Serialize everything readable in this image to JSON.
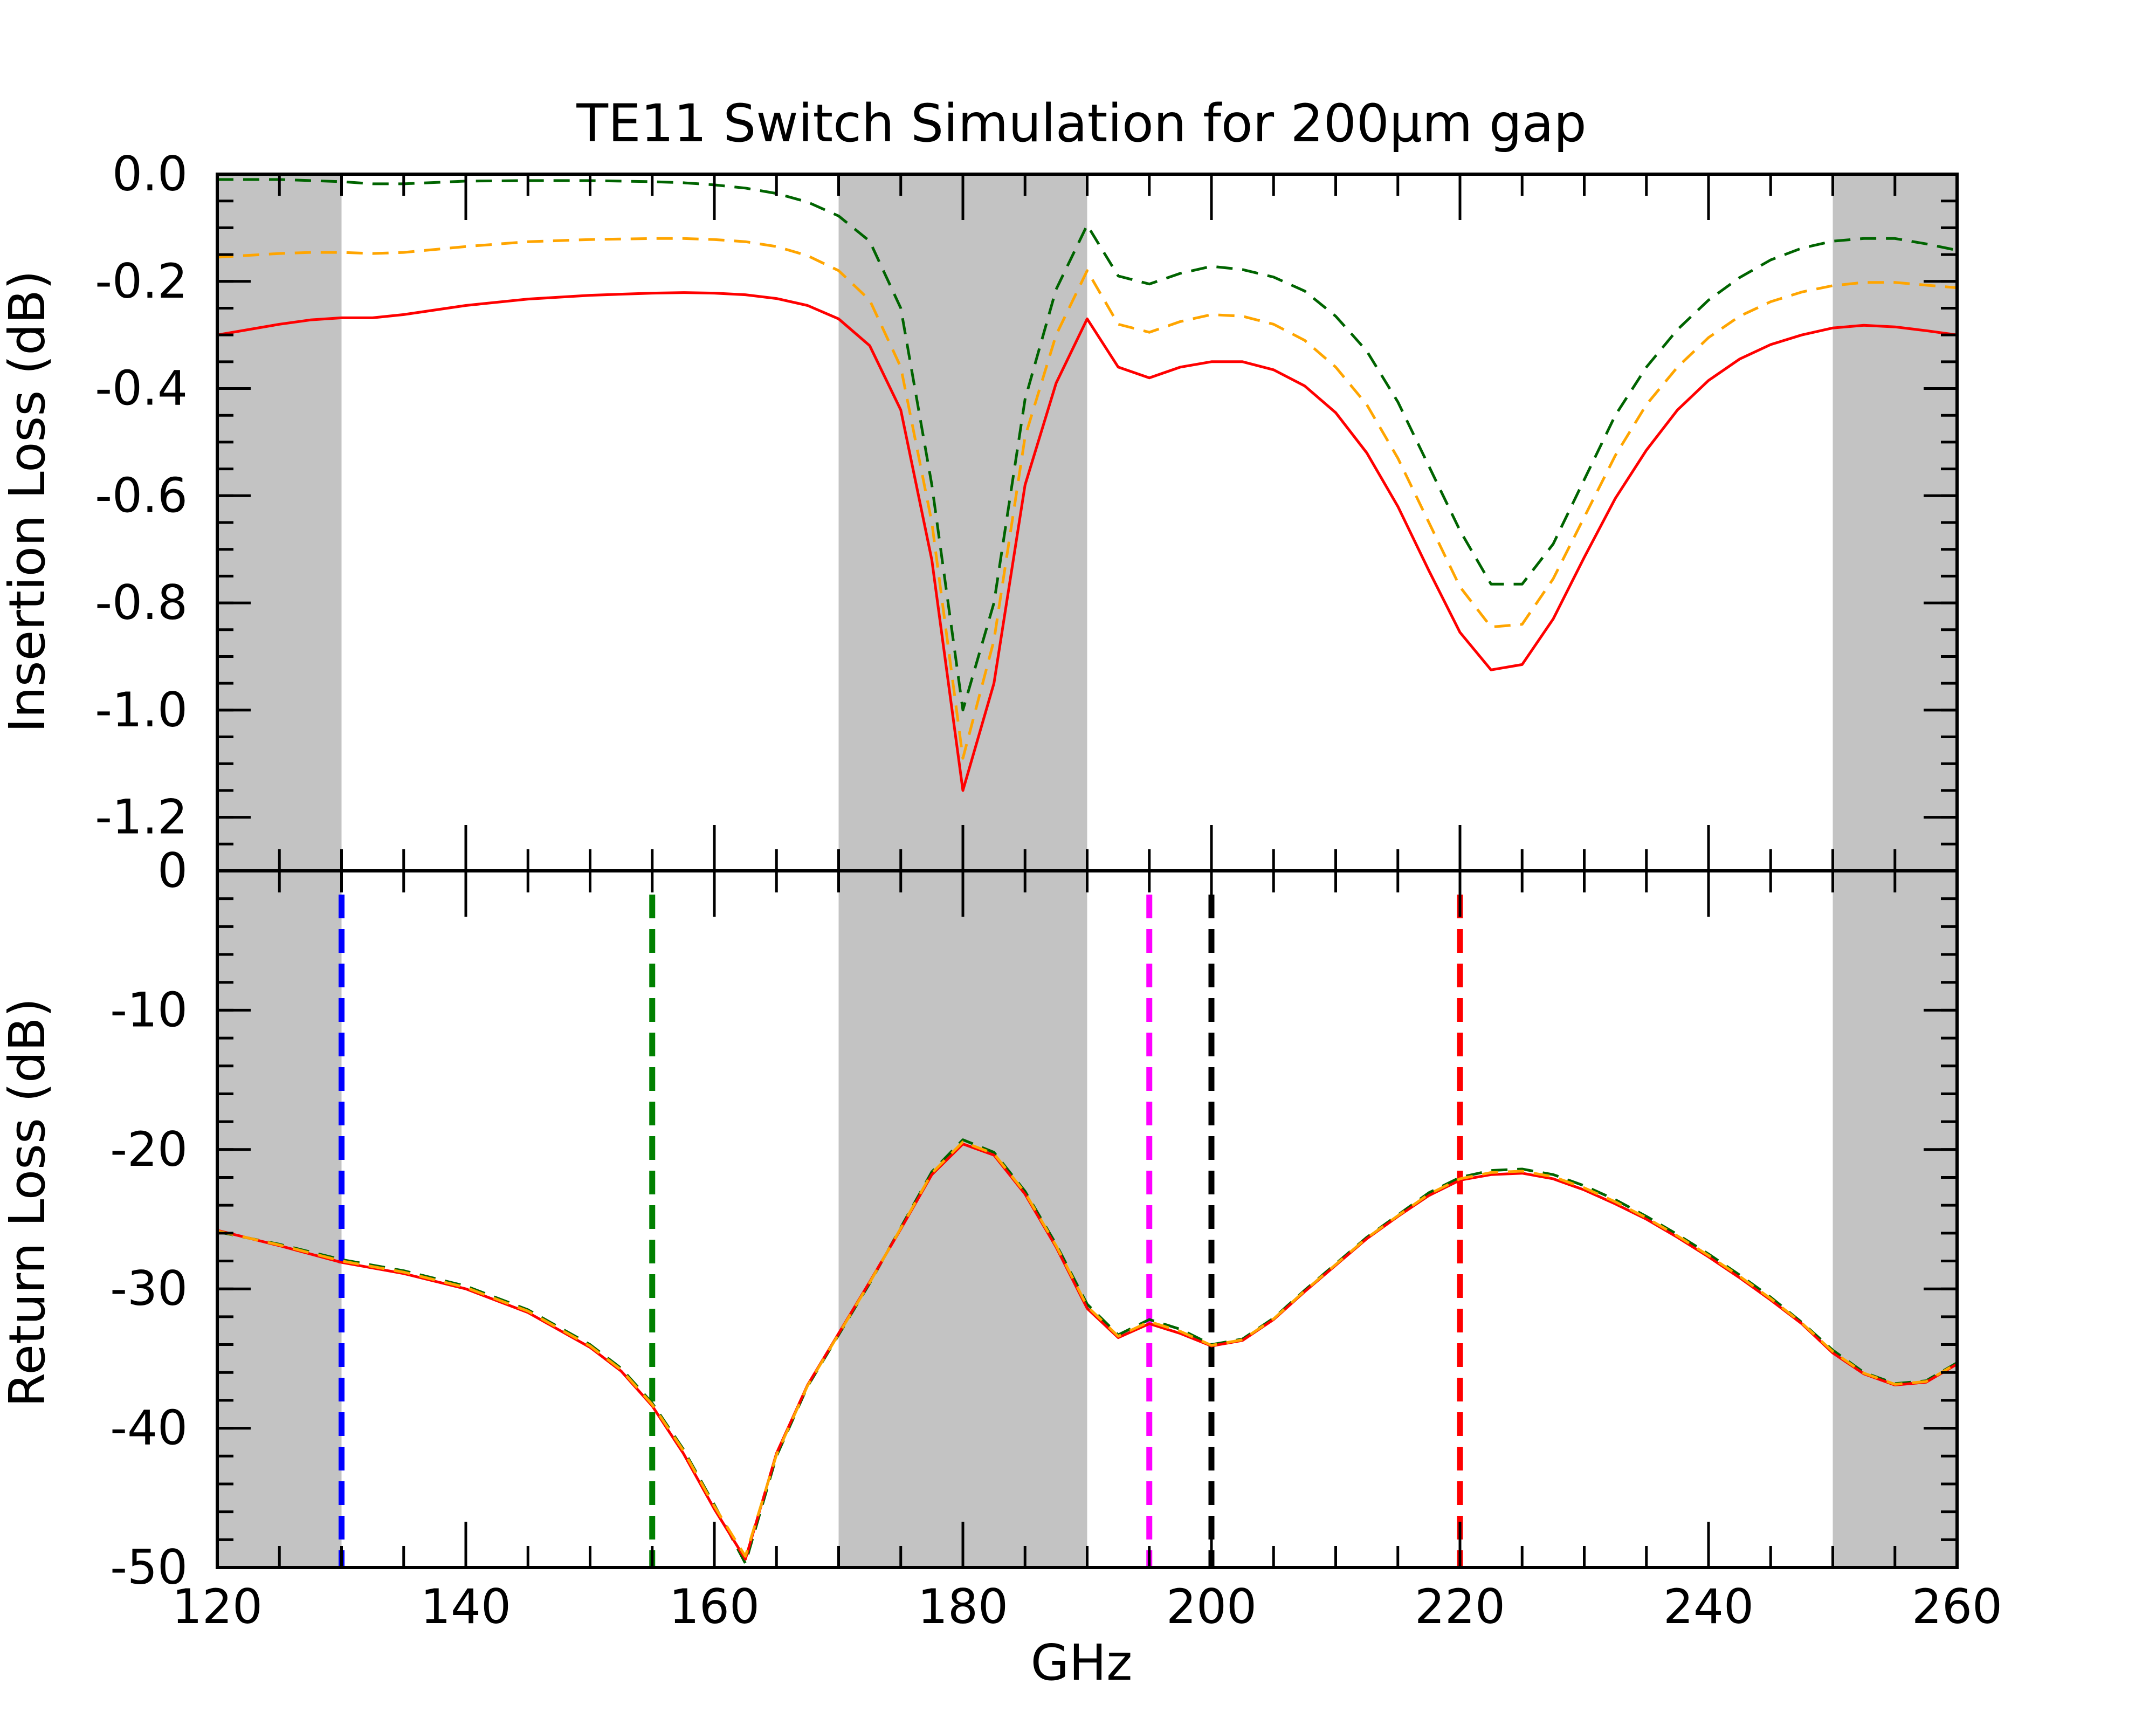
{
  "chart_data": {
    "type": "line",
    "title": "TE11 Switch Simulation for 200μm gap",
    "xlabel": "GHz",
    "xlim": [
      120,
      260
    ],
    "xticks": [
      120,
      140,
      160,
      180,
      200,
      220,
      240,
      260
    ],
    "xtick_labels": [
      "120",
      "140",
      "160",
      "180",
      "200",
      "220",
      "240",
      "260"
    ],
    "shaded_bands_ghz": [
      [
        120,
        130
      ],
      [
        170,
        190
      ],
      [
        250,
        260
      ]
    ],
    "shade_color": "#c0c0c0",
    "panels": [
      {
        "id": "insertion",
        "ylabel": "Insertion Loss (dB)",
        "ylim": [
          -1.3,
          0.0
        ],
        "yticks": [
          0.0,
          -0.2,
          -0.4,
          -0.6,
          -0.8,
          -1.0,
          -1.2
        ],
        "ytick_labels": [
          "0.0",
          "-0.2",
          "-0.4",
          "-0.6",
          "-0.8",
          "-1.0",
          "-1.2"
        ],
        "series": [
          {
            "name": "red-solid",
            "color": "#ff0000",
            "style": "solid",
            "x": [
              120,
              125,
              127.5,
              130,
              132.5,
              135,
              140,
              145,
              150,
              155,
              157.5,
              160,
              162.5,
              165,
              167.5,
              170,
              172.5,
              175,
              177.5,
              180,
              182.5,
              185,
              187.5,
              190,
              192.5,
              195,
              197.5,
              200,
              202.5,
              205,
              207.5,
              210,
              212.5,
              215,
              217.5,
              220,
              222.5,
              225,
              227.5,
              230,
              232.5,
              235,
              237.5,
              240,
              242.5,
              245,
              247.5,
              250,
              252.5,
              255,
              257.5,
              260
            ],
            "y": [
              -0.3,
              -0.28,
              -0.272,
              -0.268,
              -0.268,
              -0.262,
              -0.245,
              -0.233,
              -0.226,
              -0.222,
              -0.221,
              -0.222,
              -0.225,
              -0.232,
              -0.245,
              -0.27,
              -0.32,
              -0.44,
              -0.72,
              -1.15,
              -0.95,
              -0.58,
              -0.39,
              -0.27,
              -0.36,
              -0.38,
              -0.36,
              -0.35,
              -0.35,
              -0.365,
              -0.395,
              -0.445,
              -0.52,
              -0.62,
              -0.74,
              -0.855,
              -0.925,
              -0.915,
              -0.83,
              -0.715,
              -0.605,
              -0.515,
              -0.44,
              -0.385,
              -0.345,
              -0.318,
              -0.3,
              -0.287,
              -0.282,
              -0.285,
              -0.292,
              -0.3
            ]
          },
          {
            "name": "orange-dashed",
            "color": "#ffa500",
            "style": "dashed",
            "x": [
              120,
              125,
              127.5,
              130,
              132.5,
              135,
              140,
              145,
              150,
              155,
              157.5,
              160,
              162.5,
              165,
              167.5,
              170,
              172.5,
              175,
              177.5,
              180,
              182.5,
              185,
              187.5,
              190,
              192.5,
              195,
              197.5,
              200,
              202.5,
              205,
              207.5,
              210,
              212.5,
              215,
              217.5,
              220,
              222.5,
              225,
              227.5,
              230,
              232.5,
              235,
              237.5,
              240,
              242.5,
              245,
              247.5,
              250,
              252.5,
              255,
              257.5,
              260
            ],
            "y": [
              -0.155,
              -0.148,
              -0.146,
              -0.146,
              -0.148,
              -0.146,
              -0.135,
              -0.126,
              -0.122,
              -0.12,
              -0.12,
              -0.122,
              -0.126,
              -0.135,
              -0.152,
              -0.18,
              -0.235,
              -0.36,
              -0.65,
              -1.09,
              -0.87,
              -0.49,
              -0.3,
              -0.18,
              -0.28,
              -0.295,
              -0.275,
              -0.262,
              -0.265,
              -0.28,
              -0.31,
              -0.36,
              -0.43,
              -0.53,
              -0.65,
              -0.77,
              -0.845,
              -0.84,
              -0.755,
              -0.64,
              -0.525,
              -0.43,
              -0.36,
              -0.305,
              -0.265,
              -0.238,
              -0.22,
              -0.208,
              -0.202,
              -0.202,
              -0.207,
              -0.212
            ]
          },
          {
            "name": "green-dashed",
            "color": "#006400",
            "style": "dashed",
            "x": [
              120,
              125,
              127.5,
              130,
              132.5,
              135,
              140,
              145,
              150,
              155,
              157.5,
              160,
              162.5,
              165,
              167.5,
              170,
              172.5,
              175,
              177.5,
              180,
              182.5,
              185,
              187.5,
              190,
              192.5,
              195,
              197.5,
              200,
              202.5,
              205,
              207.5,
              210,
              212.5,
              215,
              217.5,
              220,
              222.5,
              225,
              227.5,
              230,
              232.5,
              235,
              237.5,
              240,
              242.5,
              245,
              247.5,
              250,
              252.5,
              255,
              257.5,
              260
            ],
            "y": [
              -0.01,
              -0.01,
              -0.012,
              -0.014,
              -0.018,
              -0.018,
              -0.013,
              -0.012,
              -0.012,
              -0.014,
              -0.016,
              -0.02,
              -0.026,
              -0.036,
              -0.052,
              -0.078,
              -0.125,
              -0.25,
              -0.58,
              -1.0,
              -0.8,
              -0.42,
              -0.215,
              -0.095,
              -0.19,
              -0.205,
              -0.185,
              -0.172,
              -0.178,
              -0.192,
              -0.218,
              -0.265,
              -0.33,
              -0.425,
              -0.545,
              -0.665,
              -0.765,
              -0.765,
              -0.69,
              -0.57,
              -0.45,
              -0.36,
              -0.29,
              -0.235,
              -0.193,
              -0.16,
              -0.138,
              -0.125,
              -0.12,
              -0.12,
              -0.13,
              -0.142
            ]
          }
        ]
      },
      {
        "id": "return",
        "ylabel": "Return Loss (dB)",
        "ylim": [
          -50,
          0
        ],
        "yticks": [
          0,
          -10,
          -20,
          -30,
          -40,
          -50
        ],
        "ytick_labels": [
          "0",
          "-10",
          "-20",
          "-30",
          "-40",
          "-50"
        ],
        "vlines": [
          {
            "x": 130,
            "color": "#0000ff"
          },
          {
            "x": 155,
            "color": "#008000"
          },
          {
            "x": 195,
            "color": "#ff00ff"
          },
          {
            "x": 200,
            "color": "#000000"
          },
          {
            "x": 220,
            "color": "#ff0000"
          }
        ],
        "series": [
          {
            "name": "green-dashed",
            "color": "#006400",
            "style": "dashed",
            "x": [
              120,
              125,
              130,
              135,
              140,
              145,
              150,
              152.5,
              155,
              157.5,
              160,
              162.5,
              165,
              167.5,
              170,
              172.5,
              175,
              177.5,
              180,
              182.5,
              185,
              187.5,
              190,
              192.5,
              195,
              197.5,
              200,
              202.5,
              205,
              207.5,
              210,
              212.5,
              215,
              217.5,
              220,
              222.5,
              225,
              227.5,
              230,
              232.5,
              235,
              237.5,
              240,
              242.5,
              245,
              247.5,
              250,
              252.5,
              255,
              257.5,
              260
            ],
            "y": [
              -25.9,
              -26.8,
              -27.9,
              -28.7,
              -29.8,
              -31.5,
              -34.0,
              -35.7,
              -38.2,
              -41.5,
              -45.5,
              -49.7,
              -42.0,
              -37.0,
              -33.3,
              -29.6,
              -25.6,
              -21.6,
              -19.3,
              -20.2,
              -23.0,
              -26.8,
              -31.1,
              -33.3,
              -32.2,
              -32.9,
              -34.0,
              -33.6,
              -32.1,
              -30.1,
              -28.2,
              -26.3,
              -24.7,
              -23.1,
              -22.0,
              -21.5,
              -21.4,
              -21.8,
              -22.6,
              -23.6,
              -24.8,
              -26.1,
              -27.5,
              -29.0,
              -30.6,
              -32.4,
              -34.4,
              -36.0,
              -36.8,
              -36.6,
              -35.3
            ]
          },
          {
            "name": "red-solid",
            "color": "#ff0000",
            "style": "solid",
            "x": [
              120,
              125,
              130,
              135,
              140,
              145,
              150,
              152.5,
              155,
              157.5,
              160,
              162.5,
              165,
              167.5,
              170,
              172.5,
              175,
              177.5,
              180,
              182.5,
              185,
              187.5,
              190,
              192.5,
              195,
              197.5,
              200,
              202.5,
              205,
              207.5,
              210,
              212.5,
              215,
              217.5,
              220,
              222.5,
              225,
              227.5,
              230,
              232.5,
              235,
              237.5,
              240,
              242.5,
              245,
              247.5,
              250,
              252.5,
              255,
              257.5,
              260
            ],
            "y": [
              -25.8,
              -26.9,
              -28.1,
              -28.9,
              -30.0,
              -31.7,
              -34.2,
              -35.9,
              -38.4,
              -41.8,
              -45.8,
              -49.4,
              -41.8,
              -36.9,
              -33.2,
              -29.5,
              -25.7,
              -21.8,
              -19.6,
              -20.4,
              -23.2,
              -27.0,
              -31.4,
              -33.5,
              -32.5,
              -33.2,
              -34.1,
              -33.7,
              -32.2,
              -30.2,
              -28.3,
              -26.4,
              -24.8,
              -23.3,
              -22.2,
              -21.8,
              -21.7,
              -22.1,
              -22.9,
              -23.9,
              -25.0,
              -26.3,
              -27.7,
              -29.2,
              -30.8,
              -32.5,
              -34.6,
              -36.1,
              -36.9,
              -36.7,
              -35.4
            ]
          },
          {
            "name": "orange-dashed",
            "color": "#ffa500",
            "style": "dashed",
            "x": [
              120,
              125,
              130,
              135,
              140,
              145,
              150,
              152.5,
              155,
              157.5,
              160,
              162.5,
              165,
              167.5,
              170,
              172.5,
              175,
              177.5,
              180,
              182.5,
              185,
              187.5,
              190,
              192.5,
              195,
              197.5,
              200,
              202.5,
              205,
              207.5,
              210,
              212.5,
              215,
              217.5,
              220,
              222.5,
              225,
              227.5,
              230,
              232.5,
              235,
              237.5,
              240,
              242.5,
              245,
              247.5,
              250,
              252.5,
              255,
              257.5,
              260
            ],
            "y": [
              -25.85,
              -26.85,
              -28.0,
              -28.8,
              -29.9,
              -31.6,
              -34.1,
              -35.8,
              -38.3,
              -41.6,
              -45.6,
              -49.2,
              -41.9,
              -36.95,
              -33.25,
              -29.55,
              -25.65,
              -21.7,
              -19.45,
              -20.3,
              -23.1,
              -26.9,
              -31.25,
              -33.4,
              -32.35,
              -33.05,
              -34.05,
              -33.65,
              -32.15,
              -30.15,
              -28.25,
              -26.35,
              -24.75,
              -23.2,
              -22.1,
              -21.65,
              -21.55,
              -21.95,
              -22.75,
              -23.75,
              -24.9,
              -26.2,
              -27.6,
              -29.1,
              -30.7,
              -32.45,
              -34.5,
              -36.05,
              -36.85,
              -36.65,
              -35.35
            ]
          }
        ]
      }
    ]
  }
}
